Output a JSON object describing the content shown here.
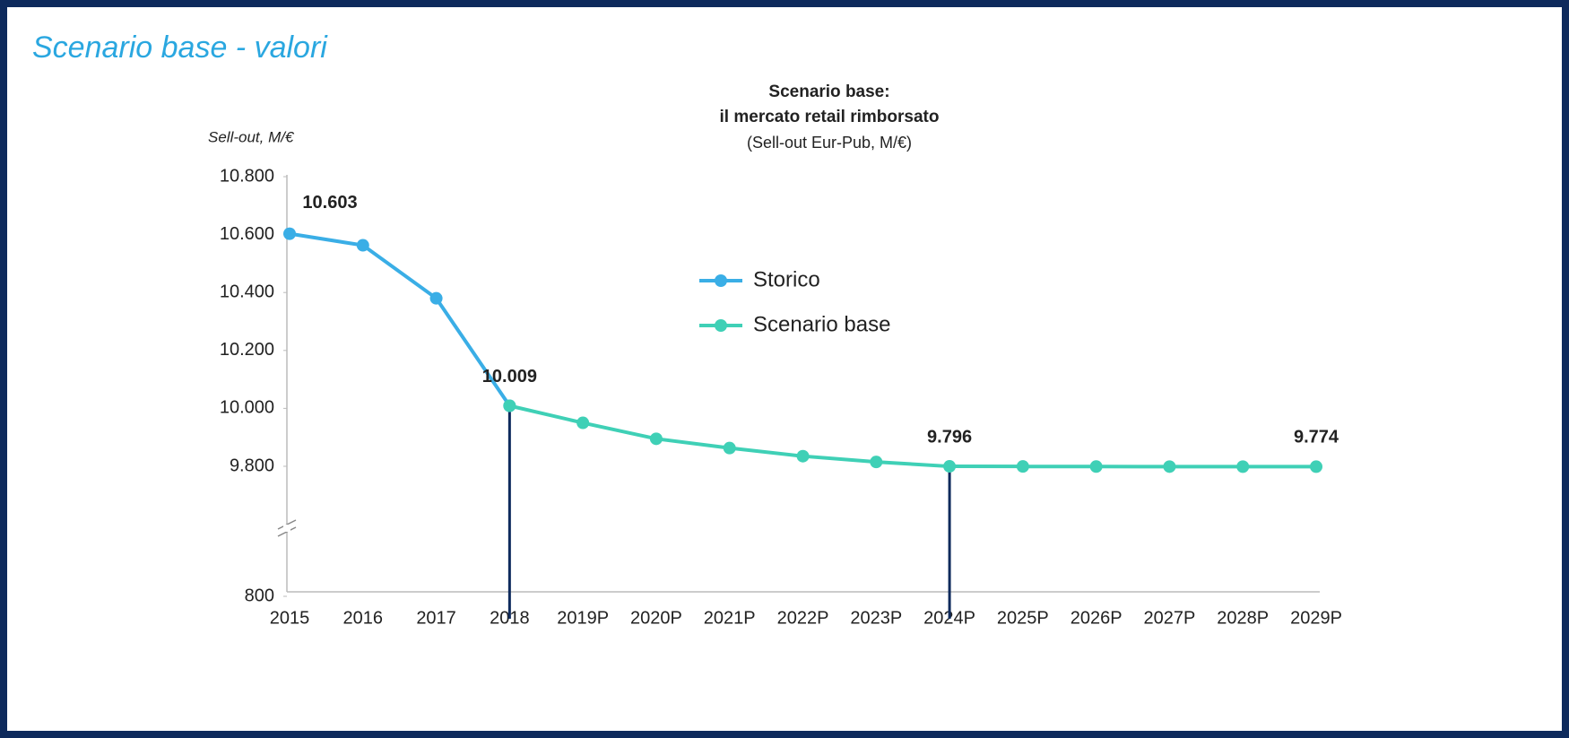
{
  "chart_data": {
    "type": "line",
    "page_title": "Scenario base - valori",
    "title": [
      "Scenario base:",
      "il mercato retail rimborsato"
    ],
    "subtitle": "(Sell-out Eur-Pub, M/€)",
    "y_label": "Sell-out, M/€",
    "categories": [
      "2015",
      "2016",
      "2017",
      "2018",
      "2019P",
      "2020P",
      "2021P",
      "2022P",
      "2023P",
      "2024P",
      "2025P",
      "2026P",
      "2027P",
      "2028P",
      "2029P"
    ],
    "series": [
      {
        "name": "Storico",
        "color": "#3aaee6",
        "values": [
          10603,
          10563,
          10380,
          10009,
          null,
          null,
          null,
          null,
          null,
          null,
          null,
          null,
          null,
          null,
          null
        ],
        "value_labels": [
          "10.603",
          null,
          null,
          "10.009",
          null,
          null,
          null,
          null,
          null,
          null,
          null,
          null,
          null,
          null,
          null
        ]
      },
      {
        "name": "Scenario base",
        "color": "#3fd0b6",
        "values": [
          null,
          null,
          null,
          10009,
          9950,
          9895,
          9863,
          9835,
          9815,
          9796,
          9788,
          9782,
          9778,
          9776,
          9774
        ],
        "value_labels": [
          null,
          null,
          null,
          null,
          null,
          null,
          null,
          null,
          null,
          "9.796",
          null,
          null,
          null,
          null,
          "9.774"
        ]
      }
    ],
    "reference_lines": [
      "2018",
      "2024P"
    ],
    "ylim": [
      800,
      10800
    ],
    "yticks": [
      800,
      {
        "value": 9800,
        "label": "9.800"
      },
      {
        "value": 10000,
        "label": "10.000"
      },
      {
        "value": 10200,
        "label": "10.200"
      },
      {
        "value": 10400,
        "label": "10.400"
      },
      {
        "value": 10600,
        "label": "10.600"
      },
      {
        "value": 10800,
        "label": "10.800"
      }
    ],
    "axis_break": true,
    "legend": "center"
  }
}
